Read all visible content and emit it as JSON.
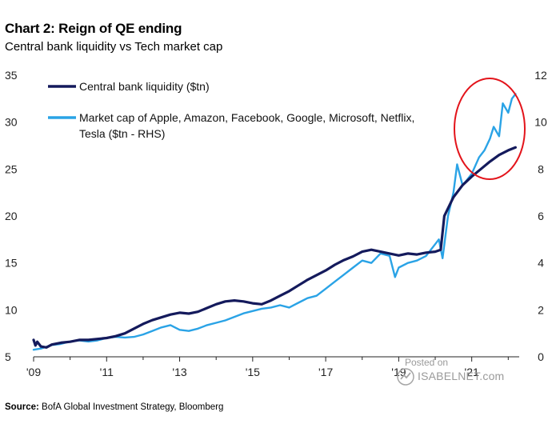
{
  "header": {
    "title": "Chart 2: Reign of QE ending",
    "subtitle": "Central bank liquidity vs Tech market cap"
  },
  "footer": {
    "source_label": "Source:",
    "source_text": "BofA Global Investment Strategy, Bloomberg"
  },
  "watermark": {
    "line1": "Posted on",
    "line2": "ISABELNET.com"
  },
  "colors": {
    "cb_line": "#141a5c",
    "tech_line": "#2aa3e6",
    "highlight_circle": "#e3141b",
    "axis": "#222222"
  },
  "chart_data": {
    "type": "line",
    "title": "Chart 2: Reign of QE ending",
    "subtitle": "Central bank liquidity vs Tech market cap",
    "x_tick_labels": [
      "'09",
      "'11",
      "'13",
      "'15",
      "'17",
      "'19",
      "'21"
    ],
    "x_tick_years": [
      2009,
      2011,
      2013,
      2015,
      2017,
      2019,
      2021
    ],
    "xlim": [
      2009,
      2022.3
    ],
    "ylim_left": [
      5,
      35
    ],
    "yticks_left": [
      5,
      10,
      15,
      20,
      25,
      30,
      35
    ],
    "ylim_right": [
      0,
      12
    ],
    "yticks_right": [
      0,
      2,
      4,
      6,
      8,
      10,
      12
    ],
    "highlight": {
      "shape": "ellipse",
      "around": "2021-2022 peak"
    },
    "series": [
      {
        "name": "Central bank liquidity ($tn)",
        "axis": "left",
        "color": "#141a5c",
        "points": [
          [
            2009.0,
            6.8
          ],
          [
            2009.05,
            6.2
          ],
          [
            2009.1,
            6.6
          ],
          [
            2009.2,
            6.1
          ],
          [
            2009.35,
            6.0
          ],
          [
            2009.5,
            6.3
          ],
          [
            2009.75,
            6.5
          ],
          [
            2010.0,
            6.6
          ],
          [
            2010.25,
            6.8
          ],
          [
            2010.5,
            6.8
          ],
          [
            2010.75,
            6.9
          ],
          [
            2011.0,
            7.0
          ],
          [
            2011.25,
            7.2
          ],
          [
            2011.5,
            7.5
          ],
          [
            2011.75,
            8.0
          ],
          [
            2012.0,
            8.5
          ],
          [
            2012.25,
            8.9
          ],
          [
            2012.5,
            9.2
          ],
          [
            2012.75,
            9.5
          ],
          [
            2013.0,
            9.7
          ],
          [
            2013.25,
            9.6
          ],
          [
            2013.5,
            9.8
          ],
          [
            2013.75,
            10.2
          ],
          [
            2014.0,
            10.6
          ],
          [
            2014.25,
            10.9
          ],
          [
            2014.5,
            11.0
          ],
          [
            2014.75,
            10.9
          ],
          [
            2015.0,
            10.7
          ],
          [
            2015.25,
            10.6
          ],
          [
            2015.5,
            11.0
          ],
          [
            2015.75,
            11.5
          ],
          [
            2016.0,
            12.0
          ],
          [
            2016.25,
            12.6
          ],
          [
            2016.5,
            13.2
          ],
          [
            2016.75,
            13.7
          ],
          [
            2017.0,
            14.2
          ],
          [
            2017.25,
            14.8
          ],
          [
            2017.5,
            15.3
          ],
          [
            2017.75,
            15.7
          ],
          [
            2018.0,
            16.2
          ],
          [
            2018.25,
            16.4
          ],
          [
            2018.5,
            16.2
          ],
          [
            2018.75,
            16.0
          ],
          [
            2019.0,
            15.8
          ],
          [
            2019.25,
            16.0
          ],
          [
            2019.5,
            15.9
          ],
          [
            2019.75,
            16.1
          ],
          [
            2020.0,
            16.2
          ],
          [
            2020.15,
            16.4
          ],
          [
            2020.25,
            20.0
          ],
          [
            2020.5,
            22.0
          ],
          [
            2020.75,
            23.3
          ],
          [
            2021.0,
            24.2
          ],
          [
            2021.25,
            25.0
          ],
          [
            2021.5,
            25.8
          ],
          [
            2021.75,
            26.5
          ],
          [
            2022.0,
            27.0
          ],
          [
            2022.2,
            27.3
          ]
        ]
      },
      {
        "name": "Market cap of Apple, Amazon, Facebook, Google, Microsoft, Netflix, Tesla ($tn - RHS)",
        "axis": "right",
        "color": "#2aa3e6",
        "points": [
          [
            2009.0,
            0.3
          ],
          [
            2009.2,
            0.35
          ],
          [
            2009.5,
            0.5
          ],
          [
            2009.75,
            0.55
          ],
          [
            2010.0,
            0.65
          ],
          [
            2010.25,
            0.7
          ],
          [
            2010.5,
            0.65
          ],
          [
            2010.75,
            0.7
          ],
          [
            2011.0,
            0.8
          ],
          [
            2011.25,
            0.85
          ],
          [
            2011.5,
            0.82
          ],
          [
            2011.75,
            0.85
          ],
          [
            2012.0,
            0.95
          ],
          [
            2012.25,
            1.1
          ],
          [
            2012.5,
            1.25
          ],
          [
            2012.75,
            1.35
          ],
          [
            2013.0,
            1.15
          ],
          [
            2013.25,
            1.1
          ],
          [
            2013.5,
            1.2
          ],
          [
            2013.75,
            1.35
          ],
          [
            2014.0,
            1.45
          ],
          [
            2014.25,
            1.55
          ],
          [
            2014.5,
            1.7
          ],
          [
            2014.75,
            1.85
          ],
          [
            2015.0,
            1.95
          ],
          [
            2015.25,
            2.05
          ],
          [
            2015.5,
            2.1
          ],
          [
            2015.75,
            2.2
          ],
          [
            2016.0,
            2.1
          ],
          [
            2016.25,
            2.3
          ],
          [
            2016.5,
            2.5
          ],
          [
            2016.75,
            2.6
          ],
          [
            2017.0,
            2.9
          ],
          [
            2017.25,
            3.2
          ],
          [
            2017.5,
            3.5
          ],
          [
            2017.75,
            3.8
          ],
          [
            2018.0,
            4.1
          ],
          [
            2018.25,
            4.0
          ],
          [
            2018.5,
            4.4
          ],
          [
            2018.75,
            4.3
          ],
          [
            2018.9,
            3.4
          ],
          [
            2019.0,
            3.8
          ],
          [
            2019.25,
            4.0
          ],
          [
            2019.5,
            4.1
          ],
          [
            2019.75,
            4.3
          ],
          [
            2020.0,
            4.8
          ],
          [
            2020.1,
            5.0
          ],
          [
            2020.2,
            4.2
          ],
          [
            2020.35,
            6.0
          ],
          [
            2020.5,
            7.0
          ],
          [
            2020.6,
            8.2
          ],
          [
            2020.75,
            7.3
          ],
          [
            2020.9,
            7.6
          ],
          [
            2021.0,
            7.8
          ],
          [
            2021.2,
            8.5
          ],
          [
            2021.35,
            8.8
          ],
          [
            2021.5,
            9.3
          ],
          [
            2021.6,
            9.8
          ],
          [
            2021.75,
            9.4
          ],
          [
            2021.85,
            10.8
          ],
          [
            2022.0,
            10.4
          ],
          [
            2022.1,
            11.0
          ],
          [
            2022.2,
            11.2
          ]
        ]
      }
    ]
  }
}
